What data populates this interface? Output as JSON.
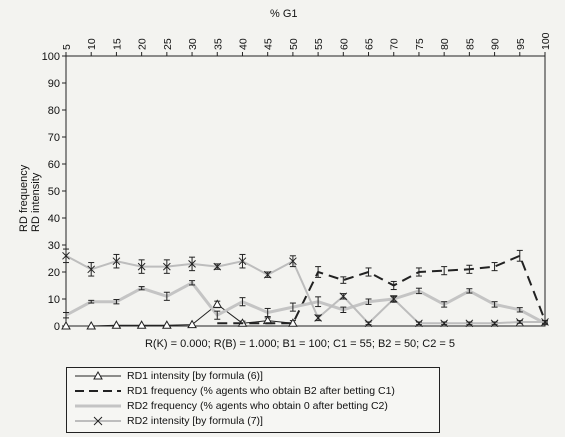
{
  "chart_data": {
    "type": "line",
    "xlabel": "% G1",
    "ylabel_lines": [
      "RD frequency",
      "RD intensity"
    ],
    "x": [
      5,
      10,
      15,
      20,
      25,
      30,
      35,
      40,
      45,
      50,
      55,
      60,
      65,
      70,
      75,
      80,
      85,
      90,
      95,
      100
    ],
    "x_ticks": [
      5,
      10,
      15,
      20,
      25,
      30,
      35,
      40,
      45,
      50,
      55,
      60,
      65,
      70,
      75,
      80,
      85,
      90,
      95,
      100
    ],
    "y_ticks": [
      0,
      10,
      20,
      30,
      40,
      50,
      60,
      70,
      80,
      90,
      100
    ],
    "ylim": [
      0,
      100
    ],
    "xlim": [
      5,
      100
    ],
    "x_axis_position": "top",
    "grid": false,
    "legend_position": "bottom",
    "series": [
      {
        "name": "RD1 intensity [by formula (6)]",
        "style": "solid-thin-triangle",
        "values": [
          0,
          0,
          0.3,
          0.3,
          0.3,
          0.5,
          8,
          1,
          2,
          1,
          null,
          null,
          null,
          null,
          null,
          null,
          null,
          null,
          null,
          null
        ],
        "errors": [
          0,
          0,
          0,
          0,
          0,
          0,
          1.2,
          0.8,
          1,
          1,
          null,
          null,
          null,
          null,
          null,
          null,
          null,
          null,
          null,
          null
        ]
      },
      {
        "name": "RD1 frequency (% agents who obtain B2 after betting C1)",
        "style": "dashed",
        "values": [
          null,
          null,
          null,
          null,
          null,
          null,
          1,
          1,
          1,
          1,
          20,
          17,
          20,
          15,
          20,
          20.5,
          21,
          22,
          26,
          2
        ],
        "errors": [
          null,
          null,
          null,
          null,
          null,
          null,
          0,
          0,
          0,
          0,
          2,
          1.2,
          1.5,
          1.5,
          1.5,
          1.5,
          1.5,
          1.5,
          2,
          0
        ]
      },
      {
        "name": "RD2 frequency (% agents who obtain 0 after betting C2)",
        "style": "solid-thick-gray",
        "values": [
          4,
          9,
          9,
          14,
          11,
          16,
          4,
          9,
          5,
          7,
          9,
          6,
          9,
          10,
          13,
          8,
          13,
          8,
          6,
          1
        ],
        "errors": [
          1,
          0.5,
          0.8,
          0.6,
          1.5,
          0.8,
          1.5,
          1.5,
          1.5,
          1.5,
          1.8,
          1,
          1,
          1.2,
          1,
          1,
          0.8,
          1,
          0.8,
          0.5
        ]
      },
      {
        "name": "RD2 intensity [by formula (7)]",
        "style": "solid-x-gray",
        "values": [
          26,
          21,
          24,
          22,
          22,
          23,
          22,
          24,
          19,
          24,
          3,
          11,
          1,
          10,
          1,
          1,
          1,
          1,
          1.5,
          1.5
        ],
        "errors": [
          2.5,
          2.5,
          2.5,
          2.5,
          2.5,
          2.5,
          1,
          2.5,
          1,
          2,
          1,
          1,
          0.5,
          1,
          0.5,
          0.5,
          0.5,
          0.5,
          0.5,
          0.5
        ]
      }
    ],
    "caption": "R(K) = 0.000; R(B) = 1.000; B1 = 100; C1 = 55; B2 = 50; C2 = 5"
  }
}
